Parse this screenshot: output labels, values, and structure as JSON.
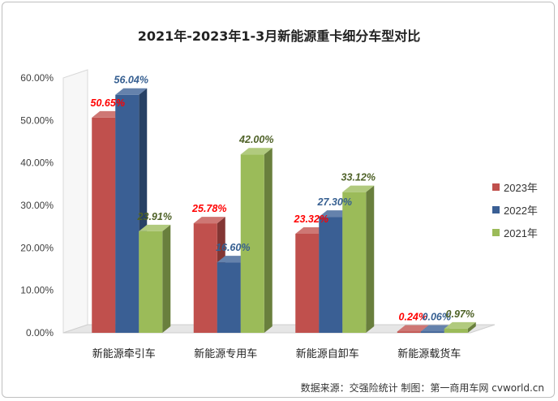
{
  "chart_data": {
    "type": "bar",
    "title": "2021年-2023年1-3月新能源重卡细分车型对比",
    "categories": [
      "新能源牵引车",
      "新能源专用车",
      "新能源自卸车",
      "新能源载货车"
    ],
    "series": [
      {
        "name": "2023年",
        "color": "#c0504d",
        "label_color": "#ff0000",
        "values": [
          50.65,
          25.78,
          23.32,
          0.24
        ],
        "labels": [
          "50.65%",
          "25.78%",
          "23.32%",
          "0.24%"
        ]
      },
      {
        "name": "2022年",
        "color": "#3a5f94",
        "label_color": "#365f91",
        "values": [
          56.04,
          16.6,
          27.3,
          0.06
        ],
        "labels": [
          "56.04%",
          "16.60%",
          "27.30%",
          "0.06%"
        ]
      },
      {
        "name": "2021年",
        "color": "#9bbb59",
        "label_color": "#4f6228",
        "values": [
          23.91,
          42.0,
          33.12,
          0.97
        ],
        "labels": [
          "23.91%",
          "42.00%",
          "33.12%",
          "0.97%"
        ]
      }
    ],
    "y_ticks": [
      "0.00%",
      "10.00%",
      "20.00%",
      "30.00%",
      "40.00%",
      "50.00%",
      "60.00%"
    ],
    "ylim": [
      0,
      60
    ],
    "legend_position": "right",
    "grid": false,
    "three_d": true
  },
  "source_note": "数据来源：交强险统计  制图：第一商用车网 cvworld.cn"
}
